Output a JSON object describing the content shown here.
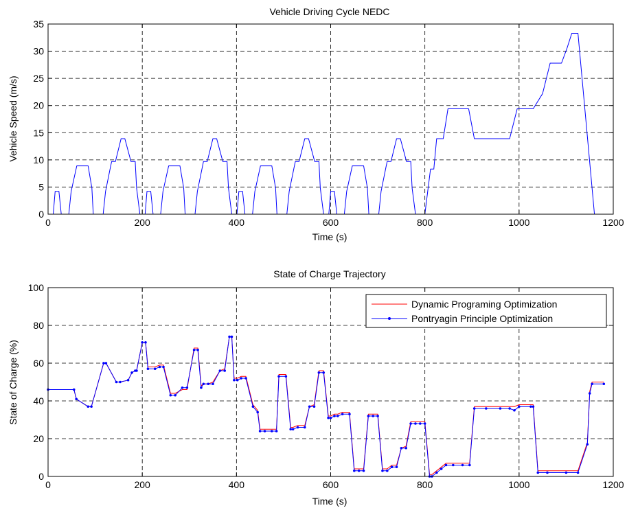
{
  "chart_data": [
    {
      "type": "line",
      "title": "Vehicle Driving Cycle NEDC",
      "xlabel": "Time (s)",
      "ylabel": "Vehicle Speed (m/s)",
      "xlim": [
        0,
        1200
      ],
      "ylim": [
        0,
        35
      ],
      "xticks": [
        0,
        200,
        400,
        600,
        800,
        1000,
        1200
      ],
      "yticks": [
        0,
        5,
        10,
        15,
        20,
        25,
        30,
        35
      ],
      "grid": true,
      "legend": "none",
      "series": [
        {
          "color": "#0000ff",
          "x": [
            0,
            11,
            15,
            23,
            28,
            44,
            49,
            61,
            85,
            93,
            96,
            117,
            122,
            133,
            135,
            143,
            155,
            163,
            176,
            178,
            185,
            188,
            195,
            206,
            210,
            218,
            223,
            239,
            244,
            256,
            280,
            288,
            291,
            312,
            317,
            328,
            330,
            338,
            350,
            358,
            371,
            373,
            380,
            383,
            390,
            401,
            405,
            413,
            418,
            434,
            439,
            451,
            475,
            483,
            486,
            507,
            512,
            523,
            525,
            533,
            545,
            553,
            566,
            568,
            575,
            578,
            585,
            596,
            600,
            608,
            613,
            629,
            634,
            646,
            670,
            678,
            681,
            702,
            707,
            718,
            720,
            728,
            740,
            748,
            761,
            763,
            770,
            773,
            780,
            800,
            806,
            812,
            819,
            825,
            839,
            849,
            893,
            905,
            955,
            980,
            996,
            1030,
            1050,
            1066,
            1090,
            1102,
            1112,
            1125,
            1160,
            1180
          ],
          "values": [
            0,
            0,
            4.2,
            4.2,
            0,
            0,
            4.2,
            8.9,
            8.9,
            4.8,
            0,
            0,
            4.2,
            8.9,
            9.7,
            9.7,
            13.9,
            13.9,
            9.7,
            9.7,
            9.7,
            4.8,
            0,
            0,
            4.2,
            4.2,
            0,
            0,
            4.2,
            8.9,
            8.9,
            4.8,
            0,
            0,
            4.2,
            8.9,
            9.7,
            9.7,
            13.9,
            13.9,
            9.7,
            9.7,
            9.7,
            4.8,
            0,
            0,
            4.2,
            4.2,
            0,
            0,
            4.2,
            8.9,
            8.9,
            4.8,
            0,
            0,
            4.2,
            8.9,
            9.7,
            9.7,
            13.9,
            13.9,
            9.7,
            9.7,
            9.7,
            4.8,
            0,
            0,
            4.2,
            4.2,
            0,
            0,
            4.2,
            8.9,
            8.9,
            4.8,
            0,
            0,
            4.2,
            8.9,
            9.7,
            9.7,
            13.9,
            13.9,
            9.7,
            9.7,
            9.7,
            4.8,
            0,
            0,
            4.2,
            8.3,
            8.3,
            13.9,
            13.9,
            19.4,
            19.4,
            13.9,
            13.9,
            13.9,
            19.4,
            19.4,
            22.2,
            27.8,
            27.8,
            30.6,
            33.3,
            33.3,
            0,
            0
          ]
        }
      ]
    },
    {
      "type": "line",
      "title": "State of Charge Trajectory",
      "xlabel": "Time (s)",
      "ylabel": "State of Charge (%)",
      "xlim": [
        0,
        1200
      ],
      "ylim": [
        0,
        100
      ],
      "xticks": [
        0,
        200,
        400,
        600,
        800,
        1000,
        1200
      ],
      "yticks": [
        0,
        20,
        40,
        60,
        80,
        100
      ],
      "grid": true,
      "legend": "top-right",
      "series": [
        {
          "name": "Dynamic Programing Optimization",
          "color": "#ff0000",
          "marker": "none",
          "x": [
            0,
            55,
            60,
            85,
            92,
            118,
            123,
            145,
            153,
            170,
            178,
            185,
            188,
            200,
            207,
            212,
            227,
            237,
            245,
            260,
            270,
            285,
            295,
            310,
            318,
            325,
            330,
            340,
            350,
            365,
            375,
            385,
            390,
            395,
            402,
            410,
            420,
            435,
            445,
            450,
            460,
            475,
            485,
            490,
            505,
            515,
            520,
            530,
            545,
            555,
            565,
            575,
            585,
            595,
            600,
            608,
            615,
            625,
            640,
            650,
            660,
            670,
            680,
            690,
            700,
            710,
            720,
            730,
            740,
            750,
            760,
            770,
            780,
            790,
            800,
            810,
            815,
            825,
            835,
            845,
            860,
            880,
            895,
            905,
            930,
            960,
            980,
            990,
            1000,
            1025,
            1030,
            1040,
            1060,
            1100,
            1125,
            1145,
            1150,
            1155,
            1180
          ],
          "values": [
            46,
            46,
            41,
            37,
            37,
            60,
            60,
            50,
            50,
            51,
            55,
            56,
            56,
            71,
            71,
            58,
            58,
            59,
            59,
            44,
            44,
            46,
            46,
            68,
            68,
            48,
            49,
            49,
            50,
            56,
            57,
            74,
            74,
            52,
            52,
            53,
            53,
            38,
            35,
            25,
            25,
            25,
            25,
            54,
            54,
            26,
            26,
            27,
            27,
            37,
            38,
            56,
            56,
            32,
            32,
            33,
            33,
            34,
            34,
            4,
            4,
            4,
            33,
            33,
            33,
            4,
            4,
            6,
            6,
            15,
            16,
            29,
            29,
            29,
            29,
            1,
            1,
            3,
            5,
            7,
            7,
            7,
            7,
            37,
            37,
            37,
            37,
            37,
            38,
            38,
            38,
            3,
            3,
            3,
            3,
            18,
            45,
            50,
            50
          ]
        },
        {
          "name": "Pontryagin Principle Optimization",
          "color": "#0000ff",
          "marker": "dot",
          "x": [
            0,
            55,
            60,
            85,
            92,
            118,
            123,
            145,
            153,
            170,
            178,
            185,
            188,
            200,
            207,
            212,
            227,
            237,
            245,
            260,
            270,
            285,
            295,
            310,
            318,
            325,
            330,
            340,
            350,
            365,
            375,
            385,
            390,
            395,
            402,
            410,
            420,
            435,
            445,
            450,
            460,
            475,
            485,
            490,
            505,
            515,
            520,
            530,
            545,
            555,
            565,
            575,
            585,
            595,
            600,
            608,
            615,
            625,
            640,
            650,
            660,
            670,
            680,
            690,
            700,
            710,
            720,
            730,
            740,
            750,
            760,
            770,
            780,
            790,
            800,
            810,
            815,
            825,
            835,
            845,
            860,
            880,
            895,
            905,
            930,
            960,
            980,
            990,
            1000,
            1025,
            1030,
            1040,
            1060,
            1100,
            1125,
            1145,
            1150,
            1155,
            1180
          ],
          "values": [
            46,
            46,
            41,
            37,
            37,
            60,
            60,
            50,
            50,
            51,
            55,
            56,
            56,
            71,
            71,
            57,
            57,
            58,
            58,
            43,
            43,
            47,
            47,
            67,
            67,
            47,
            49,
            49,
            49,
            56,
            56,
            74,
            74,
            51,
            51,
            52,
            52,
            37,
            34,
            24,
            24,
            24,
            24,
            53,
            53,
            25,
            25,
            26,
            26,
            37,
            37,
            55,
            55,
            31,
            31,
            32,
            32,
            33,
            33,
            3,
            3,
            3,
            32,
            32,
            32,
            3,
            3,
            5,
            5,
            15,
            15,
            28,
            28,
            28,
            28,
            0,
            0,
            2,
            4,
            6,
            6,
            6,
            6,
            36,
            36,
            36,
            36,
            35,
            37,
            37,
            37,
            2,
            2,
            2,
            2,
            17,
            44,
            49,
            49
          ]
        }
      ]
    }
  ]
}
